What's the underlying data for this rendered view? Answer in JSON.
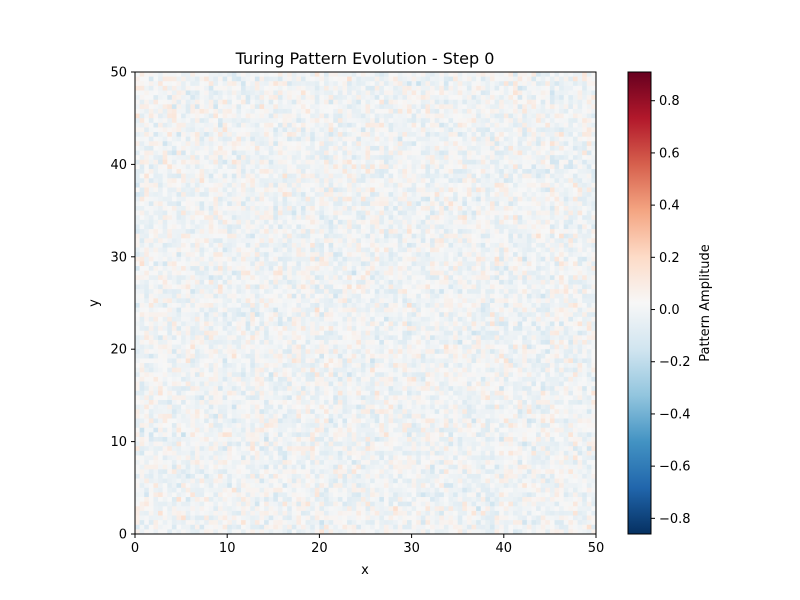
{
  "chart_data": {
    "type": "heatmap",
    "title": "Turing Pattern Evolution - Step 0",
    "xlabel": "x",
    "ylabel": "y",
    "xlim": [
      0,
      50
    ],
    "ylim": [
      0,
      50
    ],
    "x_ticks": [
      0,
      10,
      20,
      30,
      40,
      50
    ],
    "y_ticks": [
      0,
      10,
      20,
      30,
      40,
      50
    ],
    "grid_resolution": [
      100,
      100
    ],
    "field_description": "near-uniform low-amplitude random noise (values roughly within ±0.1)",
    "colormap": "RdBu_r",
    "colormap_stops": [
      "#053061",
      "#2166ac",
      "#4393c3",
      "#92c5de",
      "#d1e5f0",
      "#f7f7f7",
      "#fddbc7",
      "#f4a582",
      "#d6604d",
      "#b2182b",
      "#67001f"
    ],
    "colorbar": {
      "label": "Pattern Amplitude",
      "range": [
        -0.86,
        0.91
      ],
      "ticks": [
        -0.8,
        -0.6,
        -0.4,
        -0.2,
        0.0,
        0.2,
        0.4,
        0.6,
        0.8
      ],
      "tick_labels": [
        "−0.8",
        "−0.6",
        "−0.4",
        "−0.2",
        "0.0",
        "0.2",
        "0.4",
        "0.6",
        "0.8"
      ]
    },
    "grid": false
  }
}
